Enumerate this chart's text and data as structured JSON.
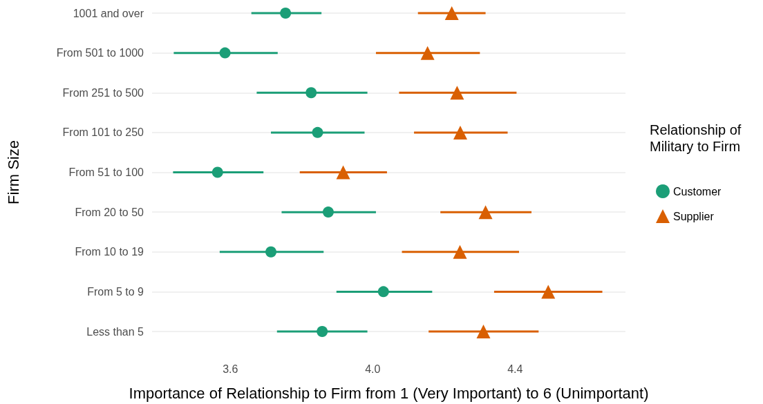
{
  "chart_data": {
    "type": "scatter",
    "orientation": "horizontal",
    "xlabel": "Importance of Relationship to Firm from 1 (Very Important) to 6 (Unimportant)",
    "ylabel": "Firm Size",
    "legend_title": "Relationship of Military to Firm",
    "categories": [
      "1001 and over",
      "From 501 to 1000",
      "From 251 to 500",
      "From 101 to 250",
      "From 51 to 100",
      "From 20 to 50",
      "From 10 to 19",
      "From 5 to 9",
      "Less than 5"
    ],
    "series": [
      {
        "name": "Customer",
        "color": "#1b9e77",
        "marker": "circle",
        "values": [
          3.755,
          3.585,
          3.827,
          3.845,
          3.564,
          3.875,
          3.714,
          4.03,
          3.858
        ],
        "errors": [
          [
            3.659,
            3.856
          ],
          [
            3.441,
            3.733
          ],
          [
            3.674,
            3.985
          ],
          [
            3.714,
            3.977
          ],
          [
            3.439,
            3.693
          ],
          [
            3.744,
            4.009
          ],
          [
            3.57,
            3.862
          ],
          [
            3.898,
            4.167
          ],
          [
            3.731,
            3.985
          ]
        ]
      },
      {
        "name": "Supplier",
        "color": "#d95f02",
        "marker": "triangle",
        "values": [
          4.222,
          4.154,
          4.237,
          4.246,
          3.917,
          4.317,
          4.245,
          4.493,
          4.311
        ],
        "errors": [
          [
            4.127,
            4.317
          ],
          [
            4.009,
            4.301
          ],
          [
            4.074,
            4.404
          ],
          [
            4.116,
            4.379
          ],
          [
            3.795,
            4.04
          ],
          [
            4.19,
            4.446
          ],
          [
            4.082,
            4.411
          ],
          [
            4.341,
            4.645
          ],
          [
            4.157,
            4.466
          ]
        ]
      }
    ],
    "xlim": [
      3.38,
      4.71
    ],
    "xticks": [
      {
        "value": 3.6,
        "label": "3.6"
      },
      {
        "value": 4,
        "label": "4.0"
      },
      {
        "value": 4.4,
        "label": "4.4"
      }
    ],
    "grid": "y",
    "legend": "right"
  }
}
